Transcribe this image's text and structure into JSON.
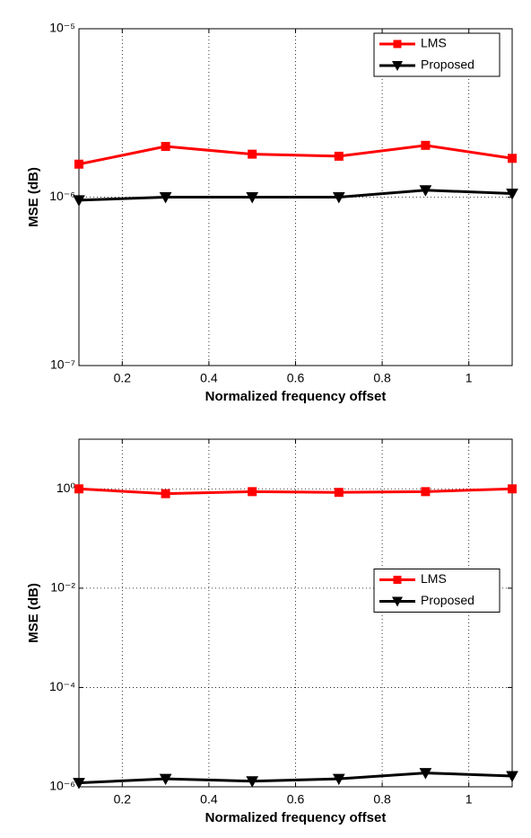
{
  "chart_data": [
    {
      "type": "line",
      "xlabel": "Normalized frequency offset",
      "ylabel": "MSE (dB)",
      "x": [
        0.1,
        0.3,
        0.5,
        0.7,
        0.9,
        1.1
      ],
      "xlim": [
        0.1,
        1.1
      ],
      "xticks": [
        0.2,
        0.4,
        0.6,
        0.8,
        1
      ],
      "ylim": [
        1e-07,
        1e-05
      ],
      "yscale": "log",
      "yticks": [
        {
          "value": 1e-07,
          "label": "10⁻⁷"
        },
        {
          "value": 1e-06,
          "label": "10⁻⁶"
        },
        {
          "value": 1e-05,
          "label": "10⁻⁵"
        }
      ],
      "grid": true,
      "legend": "upper right",
      "series": [
        {
          "name": "LMS",
          "color": "#ff0000",
          "marker": "square",
          "values": [
            1.57e-06,
            2e-06,
            1.8e-06,
            1.75e-06,
            2.03e-06,
            1.7e-06
          ]
        },
        {
          "name": "Proposed",
          "color": "#000000",
          "marker": "triangle-down",
          "values": [
            9.6e-07,
            1e-06,
            1e-06,
            1e-06,
            1.1e-06,
            1.05e-06
          ]
        }
      ]
    },
    {
      "type": "line",
      "xlabel": "Normalized frequency offset",
      "ylabel": "MSE (dB)",
      "x": [
        0.1,
        0.3,
        0.5,
        0.7,
        0.9,
        1.1
      ],
      "xlim": [
        0.1,
        1.1
      ],
      "xticks": [
        0.2,
        0.4,
        0.6,
        0.8,
        1
      ],
      "ylim": [
        1e-06,
        10
      ],
      "yscale": "log",
      "yticks": [
        {
          "value": 1e-06,
          "label": "10⁻⁶"
        },
        {
          "value": 0.0001,
          "label": "10⁻⁴"
        },
        {
          "value": 0.01,
          "label": "10⁻²"
        },
        {
          "value": 1,
          "label": "10⁰"
        }
      ],
      "grid": true,
      "legend": "center right",
      "series": [
        {
          "name": "LMS",
          "color": "#ff0000",
          "marker": "square",
          "values": [
            1.0,
            0.8,
            0.88,
            0.85,
            0.88,
            1.0
          ]
        },
        {
          "name": "Proposed",
          "color": "#000000",
          "marker": "triangle-down",
          "values": [
            1.2e-06,
            1.45e-06,
            1.3e-06,
            1.45e-06,
            1.9e-06,
            1.65e-06
          ]
        }
      ]
    }
  ]
}
